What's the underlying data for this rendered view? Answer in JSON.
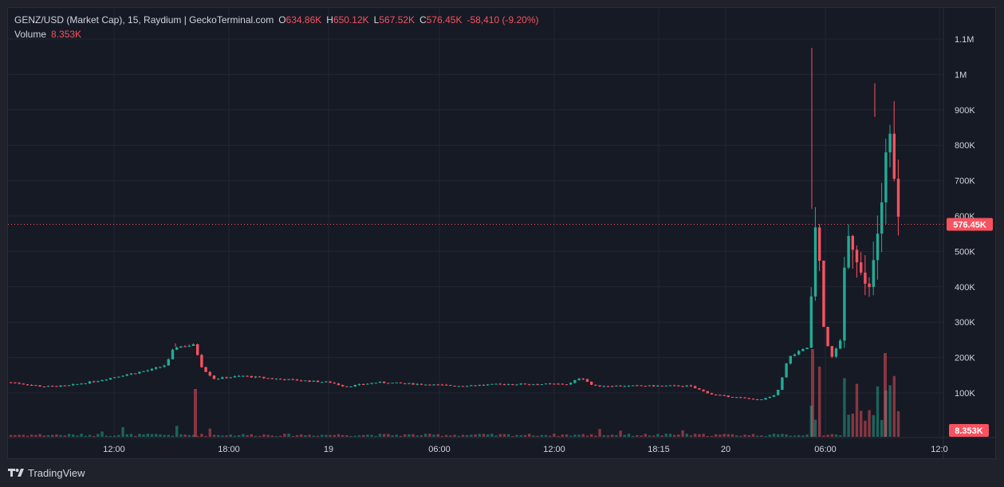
{
  "legend": {
    "title": "GENZ/USD (Market Cap), 15, Raydium | GeckoTerminal.com",
    "o_label": "O",
    "o_value": "634.86K",
    "h_label": "H",
    "h_value": "650.12K",
    "l_label": "L",
    "l_value": "567.52K",
    "c_label": "C",
    "c_value": "576.45K",
    "change": "-58,410 (-9.20%)",
    "volume_label": "Volume",
    "volume_value": "8.353K"
  },
  "footer": {
    "brand": "TradingView",
    "logo_icon": "tradingview-logo-icon"
  },
  "colors": {
    "up": "#22ab94",
    "down": "#f7525f",
    "background": "#161a25",
    "grid": "#232632"
  },
  "chart_data": {
    "type": "candlestick",
    "title": "GENZ/USD (Market Cap), 15, Raydium | GeckoTerminal.com",
    "interval": "15",
    "x_ticks": [
      "12:00",
      "18:00",
      "19",
      "06:00",
      "12:00",
      "18:15",
      "20",
      "06:00",
      "12:0"
    ],
    "y_ticks": [
      "1.1M",
      "1M",
      "900K",
      "800K",
      "700K",
      "600K",
      "500K",
      "400K",
      "300K",
      "200K",
      "100K"
    ],
    "y_tick_values": [
      1100000,
      1000000,
      900000,
      800000,
      700000,
      600000,
      500000,
      400000,
      300000,
      200000,
      100000
    ],
    "ylim": [
      0,
      1140000
    ],
    "last_price": 576450,
    "last_price_label": "576.45K",
    "last_volume_label": "8.353K",
    "grid": true,
    "key_points": [
      {
        "t": "start",
        "value": 130000
      },
      {
        "t": "~14:00 day 1",
        "value": 160000
      },
      {
        "t": "~16:00 day 1",
        "value": 230000
      },
      {
        "t": "~17:00 day 1",
        "value": 140000
      },
      {
        "t": "day 19 range",
        "value": 125000
      },
      {
        "t": "~21:00 day 19",
        "value": 80000
      },
      {
        "t": "~04:00 day 20",
        "value": 620000
      },
      {
        "t": "~04:30 day 20 high",
        "value": 1075000
      },
      {
        "t": "~05:30 day 20",
        "value": 200000
      },
      {
        "t": "~08:00 day 20",
        "value": 880000
      },
      {
        "t": "~08:00 day 20 high",
        "value": 975000
      },
      {
        "t": "last",
        "value": 576450
      }
    ]
  }
}
